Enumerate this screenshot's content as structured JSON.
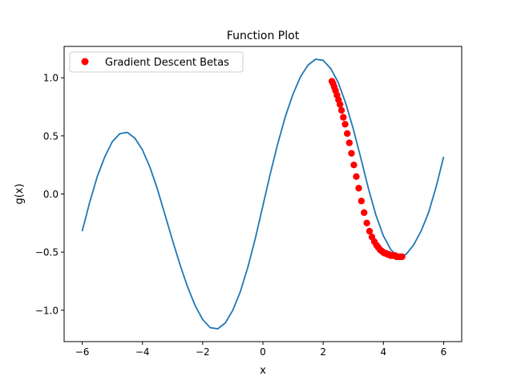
{
  "chart_data": {
    "type": "line",
    "title": "Function Plot",
    "xlabel": "x",
    "ylabel": "g(x)",
    "xlim": [
      -6.6,
      6.6
    ],
    "ylim": [
      -1.27,
      1.27
    ],
    "xticks": [
      -6,
      -4,
      -2,
      0,
      2,
      4,
      6
    ],
    "yticks": [
      -1.0,
      -0.5,
      0.0,
      0.5,
      1.0
    ],
    "xtick_labels": [
      "−6",
      "−4",
      "−2",
      "0",
      "2",
      "4",
      "6"
    ],
    "ytick_labels": [
      "−1.0",
      "−0.5",
      "0.0",
      "0.5",
      "1.0"
    ],
    "grid": false,
    "legend_position": "top-left",
    "series": [
      {
        "kind": "line",
        "color": "#1f77b4",
        "x": [
          -6.0,
          -5.75,
          -5.5,
          -5.25,
          -5.0,
          -4.75,
          -4.5,
          -4.25,
          -4.0,
          -3.75,
          -3.5,
          -3.25,
          -3.0,
          -2.75,
          -2.5,
          -2.25,
          -2.0,
          -1.75,
          -1.5,
          -1.25,
          -1.0,
          -0.75,
          -0.5,
          -0.25,
          0.0,
          0.25,
          0.5,
          0.75,
          1.0,
          1.25,
          1.5,
          1.75,
          2.0,
          2.25,
          2.5,
          2.75,
          3.0,
          3.25,
          3.5,
          3.75,
          4.0,
          4.25,
          4.5,
          4.75,
          5.0,
          5.25,
          5.5,
          5.75,
          6.0
        ],
        "y": [
          -0.32,
          -0.07,
          0.15,
          0.32,
          0.45,
          0.52,
          0.53,
          0.48,
          0.38,
          0.23,
          0.04,
          -0.18,
          -0.4,
          -0.61,
          -0.8,
          -0.96,
          -1.08,
          -1.15,
          -1.16,
          -1.11,
          -1.0,
          -0.84,
          -0.63,
          -0.38,
          -0.1,
          0.18,
          0.44,
          0.67,
          0.86,
          1.01,
          1.11,
          1.16,
          1.15,
          1.08,
          0.96,
          0.78,
          0.56,
          0.31,
          0.05,
          -0.18,
          -0.36,
          -0.48,
          -0.54,
          -0.52,
          -0.44,
          -0.32,
          -0.16,
          0.06,
          0.32
        ]
      },
      {
        "kind": "scatter",
        "name": "Gradient Descent Betas",
        "color": "#ff0000",
        "x": [
          2.29,
          2.33,
          2.37,
          2.41,
          2.46,
          2.51,
          2.56,
          2.61,
          2.67,
          2.73,
          2.8,
          2.87,
          2.94,
          3.02,
          3.1,
          3.18,
          3.27,
          3.36,
          3.45,
          3.54,
          3.62,
          3.7,
          3.77,
          3.83,
          3.89,
          3.94,
          3.99,
          4.04,
          4.09,
          4.14,
          4.19,
          4.24,
          4.29,
          4.34,
          4.39,
          4.44,
          4.49,
          4.54,
          4.59,
          4.62
        ],
        "y": [
          0.97,
          0.95,
          0.92,
          0.89,
          0.85,
          0.81,
          0.77,
          0.72,
          0.66,
          0.6,
          0.52,
          0.44,
          0.35,
          0.25,
          0.15,
          0.05,
          -0.06,
          -0.16,
          -0.25,
          -0.32,
          -0.37,
          -0.41,
          -0.44,
          -0.46,
          -0.48,
          -0.49,
          -0.5,
          -0.51,
          -0.51,
          -0.52,
          -0.52,
          -0.53,
          -0.53,
          -0.53,
          -0.53,
          -0.54,
          -0.54,
          -0.54,
          -0.54,
          -0.54
        ]
      }
    ]
  }
}
